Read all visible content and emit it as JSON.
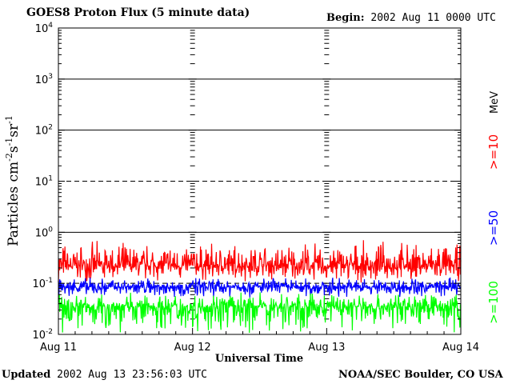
{
  "header": {
    "title": "GOES8 Proton Flux (5 minute data)",
    "begin_label": "Begin:",
    "begin_value": "2002 Aug 11 0000 UTC"
  },
  "footer": {
    "updated_label": "Updated",
    "updated_value": "2002 Aug 13 23:56:03 UTC",
    "source": "NOAA/SEC Boulder, CO USA"
  },
  "colors": {
    "ge10": "#ff0000",
    "ge50": "#0000ff",
    "ge100": "#00ff00"
  },
  "chart_data": {
    "type": "line",
    "title": "GOES8 Proton Flux (5 minute data)",
    "xlabel": "Universal Time",
    "ylabel_parts": [
      "Particles cm",
      "-2",
      "s",
      "-1",
      "sr",
      "-1"
    ],
    "y_scale": "log",
    "ylim": [
      0.01,
      10000
    ],
    "y_ticks": [
      {
        "base": "10",
        "exp": "-2",
        "value": 0.01
      },
      {
        "base": "10",
        "exp": "-1",
        "value": 0.1
      },
      {
        "base": "10",
        "exp": "0",
        "value": 1
      },
      {
        "base": "10",
        "exp": "1",
        "value": 10
      },
      {
        "base": "10",
        "exp": "2",
        "value": 100
      },
      {
        "base": "10",
        "exp": "3",
        "value": 1000
      },
      {
        "base": "10",
        "exp": "4",
        "value": 10000
      }
    ],
    "x_ticks": [
      "Aug 11",
      "Aug 12",
      "Aug 13",
      "Aug 14"
    ],
    "unit_label": "MeV",
    "series": [
      {
        "name": ">=10",
        "color": "#ff0000",
        "baseline": 0.22,
        "spread_up": 3.2,
        "spread_down": 2.2
      },
      {
        "name": ">=50",
        "color": "#0000ff",
        "baseline": 0.085,
        "spread_up": 1.6,
        "spread_down": 1.7
      },
      {
        "name": ">=100",
        "color": "#00ff00",
        "baseline": 0.035,
        "spread_up": 2.0,
        "spread_down": 3.5
      }
    ],
    "threshold_lines": [
      10,
      0.1
    ],
    "grid": true
  }
}
